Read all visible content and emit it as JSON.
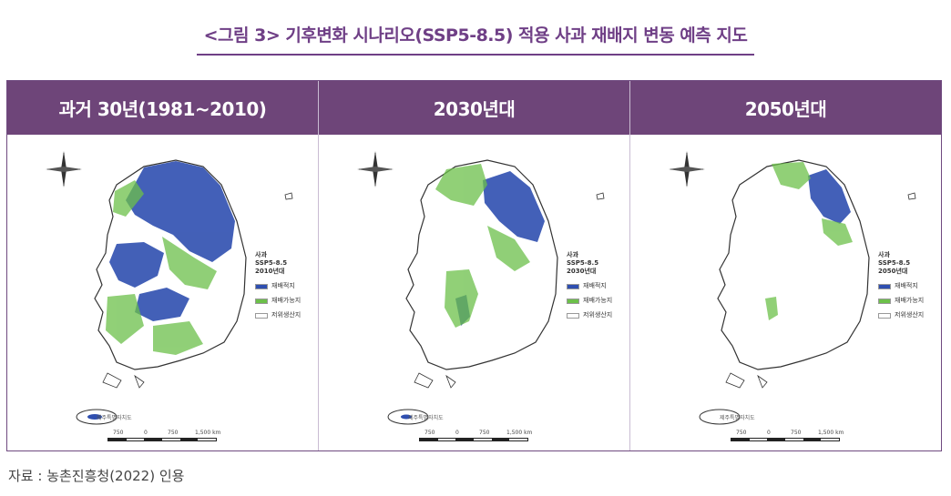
{
  "title": "<그림 3> 기후변화 시나리오(SSP5-8.5) 적용 사과 재배지 변동 예측 지도",
  "panels": [
    {
      "header": "과거 30년(1981~2010)",
      "legend_title": [
        "사과",
        "SSP5-8.5",
        "2010년대"
      ],
      "legend_items": [
        "재배적지",
        "재배가능지",
        "저위생산지"
      ],
      "jeju_label": "제주특별자치도",
      "scale_labels": [
        "750",
        "0",
        "750",
        "1,500 km"
      ]
    },
    {
      "header": "2030년대",
      "legend_title": [
        "사과",
        "SSP5-8.5",
        "2030년대"
      ],
      "legend_items": [
        "재배적지",
        "재배가능지",
        "저위생산지"
      ],
      "jeju_label": "제주특별자치도",
      "scale_labels": [
        "750",
        "0",
        "750",
        "1,500 km"
      ]
    },
    {
      "header": "2050년대",
      "legend_title": [
        "사과",
        "SSP5-8.5",
        "2050년대"
      ],
      "legend_items": [
        "재배적지",
        "재배가능지",
        "저위생산지"
      ],
      "jeju_label": "제주특별자치도",
      "scale_labels": [
        "750",
        "0",
        "750",
        "1,500 km"
      ]
    }
  ],
  "legend_colors": [
    "#2f4fb0",
    "#6cc04a",
    "#ffffff"
  ],
  "source": "자료 : 농촌진흥청(2022) 인용"
}
